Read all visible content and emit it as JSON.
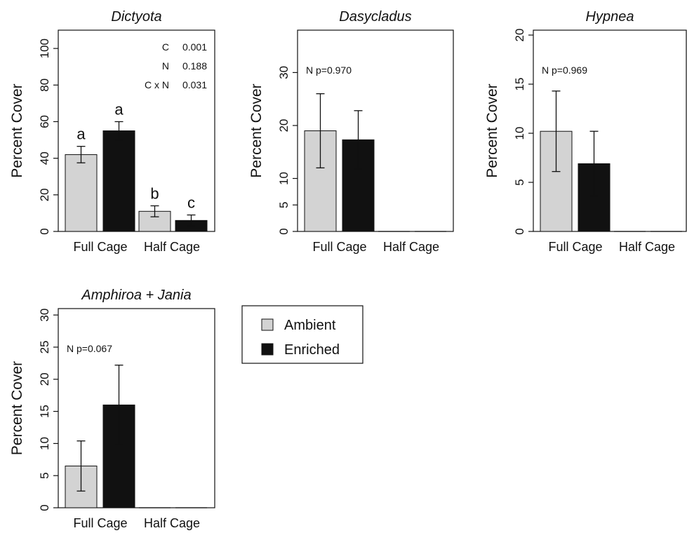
{
  "colors": {
    "ambient": "#d3d3d3",
    "enriched": "#111111",
    "axis": "#111111"
  },
  "legend": {
    "items": [
      {
        "label": "Ambient",
        "color": "#d3d3d3"
      },
      {
        "label": "Enriched",
        "color": "#111111"
      }
    ]
  },
  "chart_data": [
    {
      "type": "bar",
      "title": "Dictyota",
      "ylabel": "Percent Cover",
      "xlabel": "",
      "categories": [
        "Full Cage",
        "Half Cage"
      ],
      "ylim": [
        0,
        110
      ],
      "yticks": [
        0,
        20,
        40,
        60,
        80,
        100
      ],
      "series": [
        {
          "name": "Ambient",
          "values": [
            42,
            11
          ],
          "err": [
            4.5,
            3
          ]
        },
        {
          "name": "Enriched",
          "values": [
            55,
            6
          ],
          "err": [
            5,
            3
          ]
        }
      ],
      "letters": [
        [
          "a",
          "a"
        ],
        [
          "b",
          "c"
        ]
      ],
      "stats": [
        {
          "term": "C",
          "value": "0.001"
        },
        {
          "term": "N",
          "value": "0.188"
        },
        {
          "term": "C x N",
          "value": "0.031"
        }
      ],
      "note": ""
    },
    {
      "type": "bar",
      "title": "Dasycladus",
      "ylabel": "Percent Cover",
      "xlabel": "",
      "categories": [
        "Full Cage",
        "Half Cage"
      ],
      "ylim": [
        0,
        38
      ],
      "yticks": [
        0,
        5,
        10,
        20,
        30
      ],
      "series": [
        {
          "name": "Ambient",
          "values": [
            19,
            0
          ],
          "err": [
            7,
            0
          ]
        },
        {
          "name": "Enriched",
          "values": [
            17.3,
            0
          ],
          "err": [
            5.5,
            0
          ]
        }
      ],
      "letters": [],
      "stats": [],
      "note": "N   p=0.970"
    },
    {
      "type": "bar",
      "title": "Hypnea",
      "ylabel": "Percent Cover",
      "xlabel": "",
      "categories": [
        "Full Cage",
        "Half Cage"
      ],
      "ylim": [
        0,
        20.5
      ],
      "yticks": [
        0,
        5,
        10,
        15,
        20
      ],
      "series": [
        {
          "name": "Ambient",
          "values": [
            10.2,
            0
          ],
          "err": [
            4.1,
            0
          ]
        },
        {
          "name": "Enriched",
          "values": [
            6.9,
            0
          ],
          "err": [
            3.3,
            0
          ]
        }
      ],
      "letters": [],
      "stats": [],
      "note": "N   p=0.969"
    },
    {
      "type": "bar",
      "title": "Amphiroa + Jania",
      "ylabel": "Percent Cover",
      "xlabel": "",
      "categories": [
        "Full Cage",
        "Half Cage"
      ],
      "ylim": [
        0,
        31
      ],
      "yticks": [
        0,
        5,
        10,
        15,
        20,
        25,
        30
      ],
      "series": [
        {
          "name": "Ambient",
          "values": [
            6.5,
            0
          ],
          "err": [
            3.9,
            0
          ]
        },
        {
          "name": "Enriched",
          "values": [
            16,
            0
          ],
          "err": [
            6.2,
            0
          ]
        }
      ],
      "letters": [],
      "stats": [],
      "note": "N   p=0.067"
    }
  ]
}
